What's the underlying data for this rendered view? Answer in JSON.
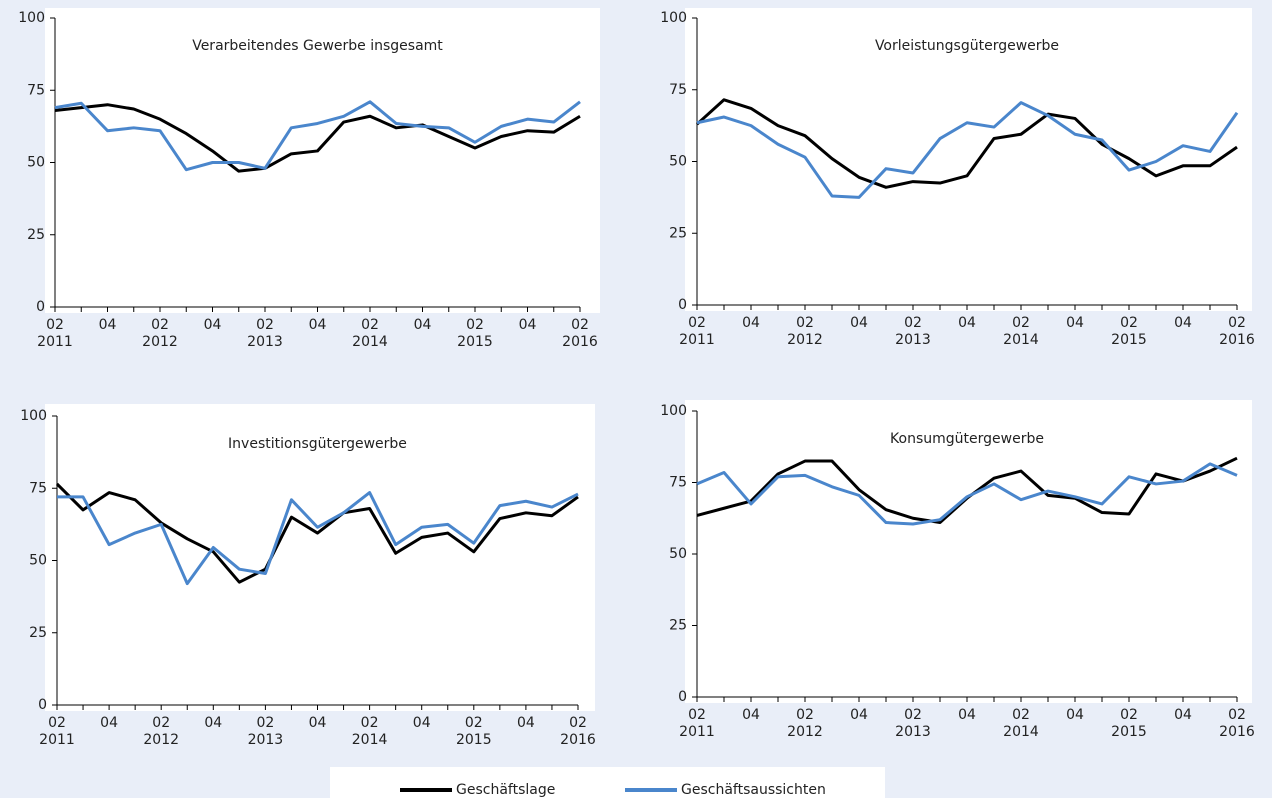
{
  "chart_data": [
    {
      "type": "line",
      "title": "Verarbeitendes Gewerbe insgesamt",
      "categories": [
        "02",
        null,
        "04",
        null,
        "02",
        null,
        "04",
        null,
        "02",
        null,
        "04",
        null,
        "02",
        null,
        "04",
        null,
        "02",
        null,
        "04",
        null,
        "02"
      ],
      "year_labels": [
        "2011",
        "2012",
        "2013",
        "2014",
        "2015",
        "2016"
      ],
      "ylim": [
        0,
        100
      ],
      "yticks": [
        0,
        25,
        50,
        75,
        100
      ],
      "series": [
        {
          "name": "Geschäftslage",
          "color": "#000000",
          "values": [
            68,
            69,
            70,
            68.5,
            65,
            60,
            54,
            47,
            48,
            53,
            54,
            64,
            66,
            62,
            63,
            59,
            55,
            59,
            61,
            60.5,
            66
          ]
        },
        {
          "name": "Geschäftsaussichten",
          "color": "#4a86cc",
          "values": [
            69,
            70.5,
            61,
            62,
            61,
            47.5,
            50,
            50,
            48,
            62,
            63.5,
            66,
            71,
            63.5,
            62.5,
            62,
            57,
            62.5,
            65,
            64,
            71
          ]
        }
      ]
    },
    {
      "type": "line",
      "title": "Vorleistungsgütergewerbe",
      "categories": [
        "02",
        null,
        "04",
        null,
        "02",
        null,
        "04",
        null,
        "02",
        null,
        "04",
        null,
        "02",
        null,
        "04",
        null,
        "02",
        null,
        "04",
        null,
        "02"
      ],
      "year_labels": [
        "2011",
        "2012",
        "2013",
        "2014",
        "2015",
        "2016"
      ],
      "ylim": [
        0,
        100
      ],
      "yticks": [
        0,
        25,
        50,
        75,
        100
      ],
      "series": [
        {
          "name": "Geschäftslage",
          "color": "#000000",
          "values": [
            63,
            71.5,
            68.5,
            62.5,
            59,
            51,
            44.5,
            41,
            43,
            42.5,
            45,
            58,
            59.5,
            66.5,
            65,
            56,
            51,
            45,
            48.5,
            48.5,
            55
          ]
        },
        {
          "name": "Geschäftsaussichten",
          "color": "#4a86cc",
          "values": [
            63.5,
            65.5,
            62.5,
            56,
            51.5,
            38,
            37.5,
            47.5,
            46,
            58,
            63.5,
            62,
            70.5,
            66,
            59.5,
            57.5,
            47,
            50,
            55.5,
            53.5,
            67
          ]
        }
      ]
    },
    {
      "type": "line",
      "title": "Investitionsgütergewerbe",
      "categories": [
        "02",
        null,
        "04",
        null,
        "02",
        null,
        "04",
        null,
        "02",
        null,
        "04",
        null,
        "02",
        null,
        "04",
        null,
        "02",
        null,
        "04",
        null,
        "02"
      ],
      "year_labels": [
        "2011",
        "2012",
        "2013",
        "2014",
        "2015",
        "2016"
      ],
      "ylim": [
        0,
        100
      ],
      "yticks": [
        0,
        25,
        50,
        75,
        100
      ],
      "series": [
        {
          "name": "Geschäftslage",
          "color": "#000000",
          "values": [
            76.5,
            67.5,
            73.5,
            71,
            63,
            57.5,
            53,
            42.5,
            47,
            65,
            59.5,
            66.5,
            68,
            52.5,
            58,
            59.5,
            53,
            64.5,
            66.5,
            65.5,
            72
          ]
        },
        {
          "name": "Geschäftsaussichten",
          "color": "#4a86cc",
          "values": [
            72,
            72,
            55.5,
            59.5,
            62.5,
            42,
            54.5,
            47,
            45.5,
            71,
            61.5,
            66.5,
            73.5,
            55.5,
            61.5,
            62.5,
            56,
            69,
            70.5,
            68.5,
            73
          ]
        }
      ]
    },
    {
      "type": "line",
      "title": "Konsumgütergewerbe",
      "categories": [
        "02",
        null,
        "04",
        null,
        "02",
        null,
        "04",
        null,
        "02",
        null,
        "04",
        null,
        "02",
        null,
        "04",
        null,
        "02",
        null,
        "04",
        null,
        "02"
      ],
      "year_labels": [
        "2011",
        "2012",
        "2013",
        "2014",
        "2015",
        "2016"
      ],
      "ylim": [
        0,
        100
      ],
      "yticks": [
        0,
        25,
        50,
        75,
        100
      ],
      "series": [
        {
          "name": "Geschäftslage",
          "color": "#000000",
          "values": [
            63.5,
            66,
            68.5,
            78,
            82.5,
            82.5,
            72.5,
            65.5,
            62.5,
            61,
            69.5,
            76.5,
            79,
            70.5,
            69.5,
            64.5,
            64,
            78,
            75.5,
            79,
            83.5
          ]
        },
        {
          "name": "Geschäftsaussichten",
          "color": "#4a86cc",
          "values": [
            74.5,
            78.5,
            67.5,
            77,
            77.5,
            73.5,
            70.5,
            61,
            60.5,
            62,
            70,
            74.5,
            69,
            72,
            70,
            67.5,
            77,
            74.5,
            75.5,
            81.5,
            77.5
          ]
        }
      ]
    }
  ]
}
